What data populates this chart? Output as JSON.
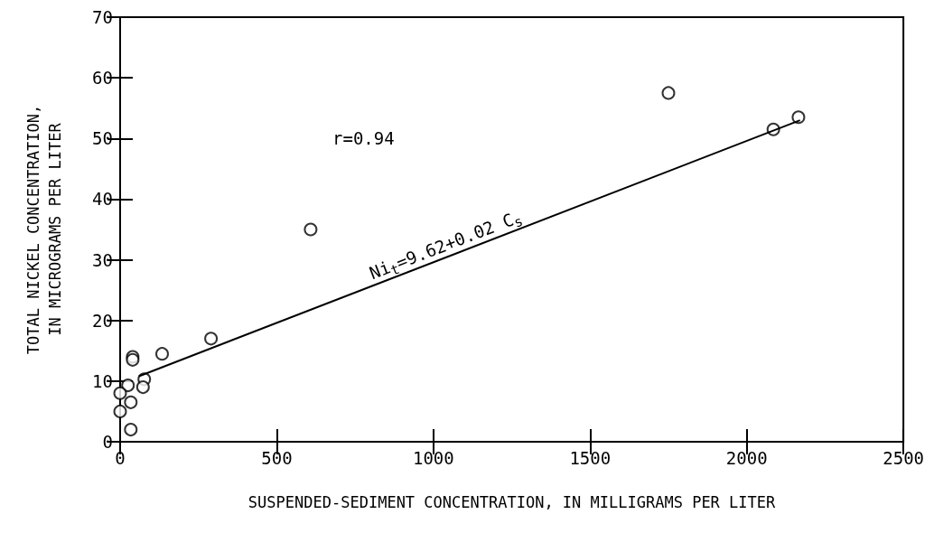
{
  "chart_data": {
    "type": "scatter",
    "xlabel": "SUSPENDED-SEDIMENT CONCENTRATION, IN MILLIGRAMS PER LITER",
    "ylabel": "TOTAL NICKEL CONCENTRATION,\nIN MICROGRAMS PER LITER",
    "annotations": [
      "r=0.94",
      "Ni$_{t}$=9.62+0.02 C$_{s}$"
    ],
    "series": [
      {
        "color": "#000000",
        "x": [
          608,
          290,
          134,
          40,
          40,
          77,
          73,
          25,
          0,
          0,
          34,
          34,
          1750,
          2085,
          2165
        ],
        "values": [
          35,
          17,
          14.5,
          14,
          13.5,
          10.3,
          9,
          9.3,
          8,
          5,
          6.5,
          2,
          57.5,
          51.5,
          53.5
        ]
      },
      {
        "type": "line",
        "color": "#000000",
        "marker": "none",
        "x": [
          60,
          2170
        ],
        "values": [
          10.8,
          53
        ]
      }
    ],
    "xlim": [
      0,
      2500
    ],
    "xticks": [
      0,
      500,
      1000,
      1500,
      2000,
      2500
    ],
    "ylim": [
      0,
      70
    ],
    "yticks": [
      0,
      10,
      20,
      30,
      40,
      50,
      60,
      70
    ],
    "grid": false,
    "marker": "circle",
    "line_style": "solid"
  }
}
